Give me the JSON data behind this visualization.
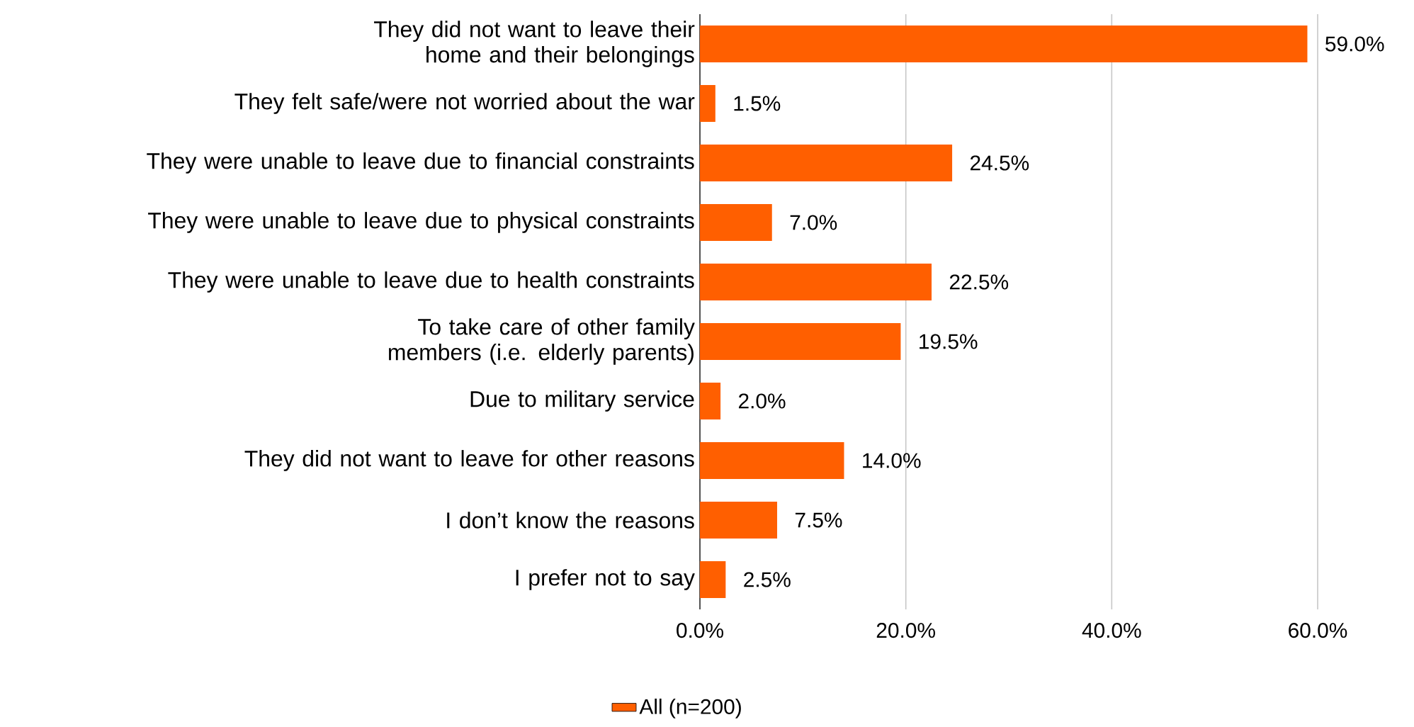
{
  "chart_data": {
    "type": "bar",
    "orientation": "horizontal",
    "categories": [
      "They did not want to leave their home and their belongings",
      "They felt safe/were not worried about the war",
      "They were unable to leave due to financial constraints",
      "They were unable to leave due to physical constraints",
      "They were unable to leave due to health constraints",
      "To take care of other family members (i.e. elderly parents)",
      "Due to military service",
      "They did not want to leave for other reasons",
      "I don’t know the reasons",
      "I prefer not to say"
    ],
    "series": [
      {
        "name": "All (n=200)",
        "color": "#ff5f00",
        "values": [
          59.0,
          1.5,
          24.5,
          7.0,
          22.5,
          19.5,
          2.0,
          14.0,
          7.5,
          2.5
        ],
        "value_labels": [
          "59.0%",
          "1.5%",
          "24.5%",
          "7.0%",
          "22.5%",
          "19.5%",
          "2.0%",
          "14.0%",
          "7.5%",
          "2.5%"
        ]
      }
    ],
    "xlim": [
      0,
      60
    ],
    "xticks": [
      {
        "value": 0,
        "label": "0.0%"
      },
      {
        "value": 20,
        "label": "20.0%"
      },
      {
        "value": 40,
        "label": "40.0%"
      },
      {
        "value": 60,
        "label": "60.0%"
      }
    ],
    "grid": "x",
    "legend": "bottom"
  }
}
